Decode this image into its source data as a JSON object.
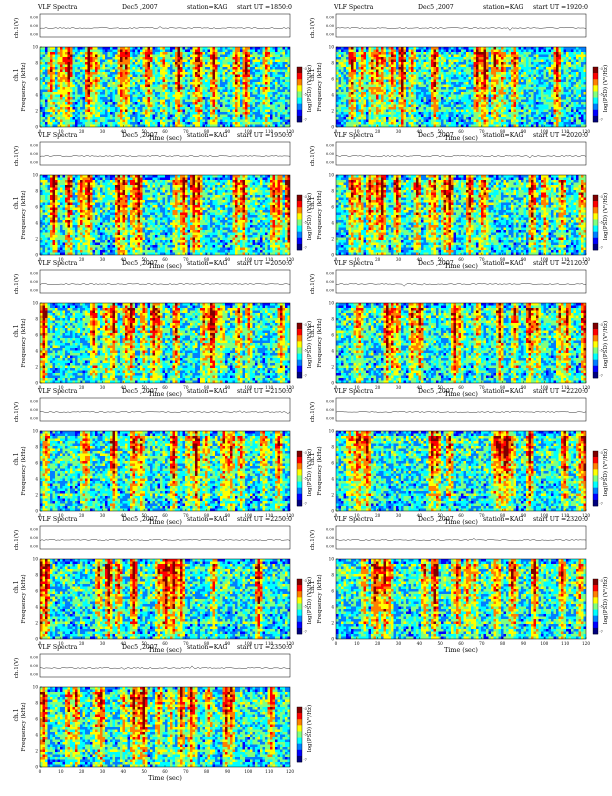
{
  "colors": {
    "colormap": [
      "#00007f",
      "#0000ff",
      "#007fff",
      "#00ffff",
      "#7fff7f",
      "#ffff00",
      "#ff7f00",
      "#ff0000",
      "#7f0000"
    ],
    "background_dominant": "#3da5ff"
  },
  "chart_data": [
    {
      "type": "heatmap",
      "header": {
        "left": "VLF Spectra",
        "date": "Dec5 ,2007",
        "station": "station=KAG",
        "start": "start  UT  =1850:0"
      },
      "top_ylabel": "ch.1(V)",
      "top_yticks": [
        "0.00",
        "0.00",
        "0.00"
      ],
      "ylabel_prefix": "ch.1",
      "ylabel": "Frequency  (kHz)",
      "yticks": [
        "0",
        "2",
        "4",
        "6",
        "8",
        "10"
      ],
      "xticks": [
        "0",
        "10",
        "20",
        "30",
        "40",
        "50",
        "60",
        "70",
        "80",
        "90",
        "100",
        "110",
        "120"
      ],
      "xlabel": "Time  (sec)",
      "colorbar_label": "log(PSD) (V²/Hz)",
      "colorbar_ticks": [
        "-3",
        "-5",
        "-7"
      ],
      "xlim": [
        0,
        120
      ],
      "ylim": [
        0,
        10
      ]
    },
    {
      "type": "heatmap",
      "header": {
        "left": "VLF Spectra",
        "date": "Dec5 ,2007",
        "station": "station=KAG",
        "start": "start  UT  =1920:0"
      },
      "top_ylabel": "ch.1(V)",
      "top_yticks": [
        "0.00",
        "0.00",
        "0.00"
      ],
      "ylabel_prefix": "ch.1",
      "ylabel": "Frequency  (kHz)",
      "yticks": [
        "0",
        "2",
        "4",
        "6",
        "8",
        "10"
      ],
      "xticks": [
        "0",
        "10",
        "20",
        "30",
        "40",
        "50",
        "60",
        "70",
        "80",
        "90",
        "100",
        "110",
        "120"
      ],
      "xlabel": "Time  (sec)",
      "colorbar_label": "log(PSD) (V²/Hz)",
      "colorbar_ticks": [
        "-3",
        "-5",
        "-7"
      ],
      "xlim": [
        0,
        120
      ],
      "ylim": [
        0,
        10
      ]
    },
    {
      "type": "heatmap",
      "header": {
        "left": "VLF Spectra",
        "date": "Dec5 ,2007",
        "station": "station=KAG",
        "start": "start  UT  =1950:0"
      },
      "top_ylabel": "ch.1(V)",
      "top_yticks": [
        "0.00",
        "0.00",
        "0.00"
      ],
      "ylabel_prefix": "ch.1",
      "ylabel": "Frequency  (kHz)",
      "yticks": [
        "0",
        "2",
        "4",
        "6",
        "8",
        "10"
      ],
      "xticks": [
        "0",
        "10",
        "20",
        "30",
        "40",
        "50",
        "60",
        "70",
        "80",
        "90",
        "100",
        "110",
        "120"
      ],
      "xlabel": "Time  (sec)",
      "colorbar_label": "log(PSD) (V²/Hz)",
      "colorbar_ticks": [
        "-3",
        "-5",
        "-7"
      ],
      "xlim": [
        0,
        120
      ],
      "ylim": [
        0,
        10
      ]
    },
    {
      "type": "heatmap",
      "header": {
        "left": "VLF Spectra",
        "date": "Dec5 ,2007",
        "station": "station=KAG",
        "start": "start  UT  =2020:0"
      },
      "top_ylabel": "ch.1(V)",
      "top_yticks": [
        "0.00",
        "0.00",
        "0.00"
      ],
      "ylabel_prefix": "ch.1",
      "ylabel": "Frequency  (kHz)",
      "yticks": [
        "0",
        "2",
        "4",
        "6",
        "8",
        "10"
      ],
      "xticks": [
        "0",
        "10",
        "20",
        "30",
        "40",
        "50",
        "60",
        "70",
        "80",
        "90",
        "100",
        "110",
        "120"
      ],
      "xlabel": "Time  (sec)",
      "colorbar_label": "log(PSD) (V²/Hz)",
      "colorbar_ticks": [
        "-3",
        "-5",
        "-7"
      ],
      "xlim": [
        0,
        120
      ],
      "ylim": [
        0,
        10
      ]
    },
    {
      "type": "heatmap",
      "header": {
        "left": "VLF Spectra",
        "date": "Dec5 ,2007",
        "station": "station=KAG",
        "start": "start  UT  =2050:0"
      },
      "top_ylabel": "ch.1(V)",
      "top_yticks": [
        "0.00",
        "0.00",
        "0.00"
      ],
      "ylabel_prefix": "ch.1",
      "ylabel": "Frequency  (kHz)",
      "yticks": [
        "0",
        "2",
        "4",
        "6",
        "8",
        "10"
      ],
      "xticks": [
        "0",
        "10",
        "20",
        "30",
        "40",
        "50",
        "60",
        "70",
        "80",
        "90",
        "100",
        "110",
        "120"
      ],
      "xlabel": "Time  (sec)",
      "colorbar_label": "log(PSD) (V²/Hz)",
      "colorbar_ticks": [
        "-3",
        "-5",
        "-7"
      ],
      "xlim": [
        0,
        120
      ],
      "ylim": [
        0,
        10
      ]
    },
    {
      "type": "heatmap",
      "header": {
        "left": "VLF Spectra",
        "date": "Dec5 ,2007",
        "station": "station=KAG",
        "start": "start  UT  =2120:0"
      },
      "top_ylabel": "ch.1(V)",
      "top_yticks": [
        "0.00",
        "0.00",
        "0.00"
      ],
      "ylabel_prefix": "ch.1",
      "ylabel": "Frequency  (kHz)",
      "yticks": [
        "0",
        "2",
        "4",
        "6",
        "8",
        "10"
      ],
      "xticks": [
        "0",
        "10",
        "20",
        "30",
        "40",
        "50",
        "60",
        "70",
        "80",
        "90",
        "100",
        "110",
        "120"
      ],
      "xlabel": "Time  (sec)",
      "colorbar_label": "log(PSD) (V²/Hz)",
      "colorbar_ticks": [
        "-3",
        "-5",
        "-7"
      ],
      "xlim": [
        0,
        120
      ],
      "ylim": [
        0,
        10
      ]
    },
    {
      "type": "heatmap",
      "header": {
        "left": "VLF Spectra",
        "date": "Dec5 ,2007",
        "station": "station=KAG",
        "start": "start  UT  =2150:0"
      },
      "top_ylabel": "ch.1(V)",
      "top_yticks": [
        "0.00",
        "0.00",
        "0.00"
      ],
      "ylabel_prefix": "ch.1",
      "ylabel": "Frequency  (kHz)",
      "yticks": [
        "0",
        "2",
        "4",
        "6",
        "8",
        "10"
      ],
      "xticks": [
        "0",
        "10",
        "20",
        "30",
        "40",
        "50",
        "60",
        "70",
        "80",
        "90",
        "100",
        "110",
        "120"
      ],
      "xlabel": "Time  (sec)",
      "colorbar_label": "log(PSD) (V²/Hz)",
      "colorbar_ticks": [
        "-3",
        "-5",
        "-7"
      ],
      "xlim": [
        0,
        120
      ],
      "ylim": [
        0,
        10
      ]
    },
    {
      "type": "heatmap",
      "header": {
        "left": "VLF Spectra",
        "date": "Dec5 ,2007",
        "station": "station=KAG",
        "start": "start  UT  =2220:0"
      },
      "top_ylabel": "ch.1(V)",
      "top_yticks": [
        "0.00",
        "0.00",
        "0.00"
      ],
      "ylabel_prefix": "ch.1",
      "ylabel": "Frequency  (kHz)",
      "yticks": [
        "0",
        "2",
        "4",
        "6",
        "8",
        "10"
      ],
      "xticks": [
        "0",
        "10",
        "20",
        "30",
        "40",
        "50",
        "60",
        "70",
        "80",
        "90",
        "100",
        "110",
        "120"
      ],
      "xlabel": "Time  (sec)",
      "colorbar_label": "log(PSD) (V²/Hz)",
      "colorbar_ticks": [
        "-3",
        "-5",
        "-7"
      ],
      "xlim": [
        0,
        120
      ],
      "ylim": [
        0,
        10
      ]
    },
    {
      "type": "heatmap",
      "header": {
        "left": "VLF Spectra",
        "date": "Dec5 ,2007",
        "station": "station=KAG",
        "start": "start  UT  =2250:0"
      },
      "top_ylabel": "ch.1(V)",
      "top_yticks": [
        "0.00",
        "0.00",
        "0.00"
      ],
      "ylabel_prefix": "ch.1",
      "ylabel": "Frequency  (kHz)",
      "yticks": [
        "0",
        "2",
        "4",
        "6",
        "8",
        "10"
      ],
      "xticks": [
        "0",
        "10",
        "20",
        "30",
        "40",
        "50",
        "60",
        "70",
        "80",
        "90",
        "100",
        "110",
        "120"
      ],
      "xlabel": "Time  (sec)",
      "colorbar_label": "log(PSD) (V²/Hz)",
      "colorbar_ticks": [
        "-3",
        "-5",
        "-7"
      ],
      "xlim": [
        0,
        120
      ],
      "ylim": [
        0,
        10
      ]
    },
    {
      "type": "heatmap",
      "header": {
        "left": "VLF Spectra",
        "date": "Dec5 ,2007",
        "station": "station=KAG",
        "start": "start  UT  =2320:0"
      },
      "top_ylabel": "ch.1(V)",
      "top_yticks": [
        "0.00",
        "0.00",
        "0.00"
      ],
      "ylabel_prefix": "ch.1",
      "ylabel": "Frequency  (kHz)",
      "yticks": [
        "0",
        "2",
        "4",
        "6",
        "8",
        "10"
      ],
      "xticks": [
        "0",
        "10",
        "20",
        "30",
        "40",
        "50",
        "60",
        "70",
        "80",
        "90",
        "100",
        "110",
        "120"
      ],
      "xlabel": "Time  (sec)",
      "colorbar_label": "log(PSD) (V²/Hz)",
      "colorbar_ticks": [
        "-3",
        "-5",
        "-7"
      ],
      "xlim": [
        0,
        120
      ],
      "ylim": [
        0,
        10
      ]
    },
    {
      "type": "heatmap",
      "header": {
        "left": "VLF Spectra",
        "date": "Dec5 ,2007",
        "station": "station=KAG",
        "start": "start  UT  =2350:0"
      },
      "top_ylabel": "ch.1(V)",
      "top_yticks": [
        "0.00",
        "0.00",
        "0.00"
      ],
      "ylabel_prefix": "ch.1",
      "ylabel": "Frequency  (kHz)",
      "yticks": [
        "0",
        "2",
        "4",
        "6",
        "8",
        "10"
      ],
      "xticks": [
        "0",
        "10",
        "20",
        "30",
        "40",
        "50",
        "60",
        "70",
        "80",
        "90",
        "100",
        "110",
        "120"
      ],
      "xlabel": "Time  (sec)",
      "colorbar_label": "log(PSD) (V²/Hz)",
      "colorbar_ticks": [
        "-3",
        "-5",
        "-7"
      ],
      "xlim": [
        0,
        120
      ],
      "ylim": [
        0,
        10
      ]
    }
  ]
}
